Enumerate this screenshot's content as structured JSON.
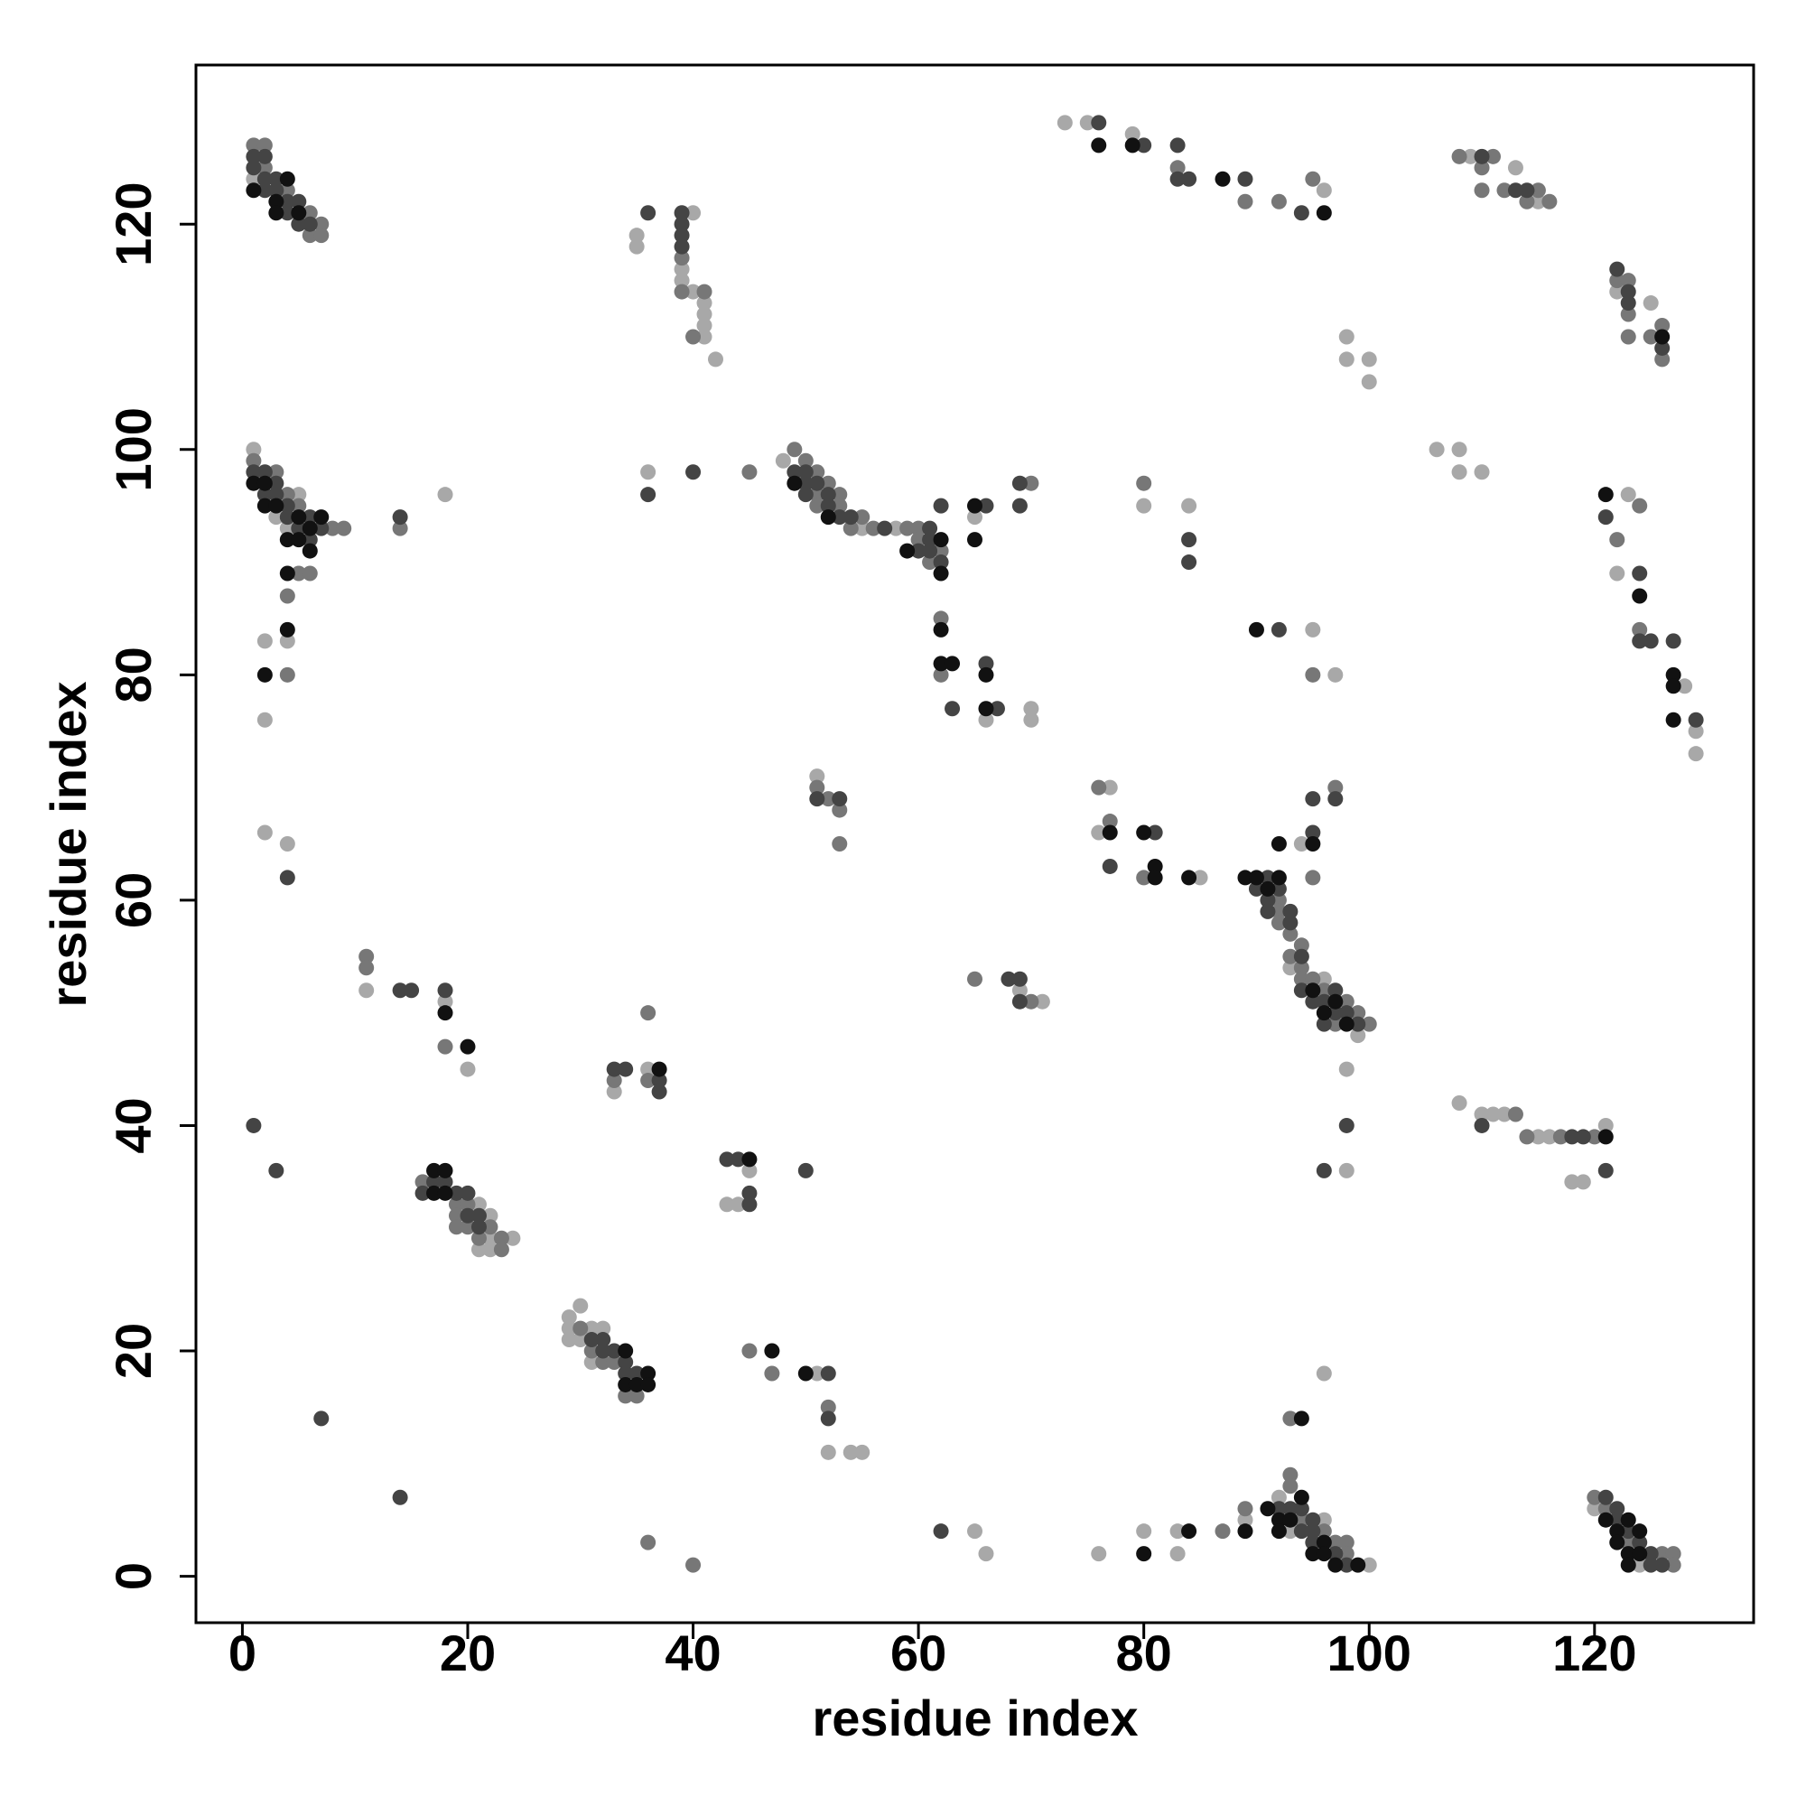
{
  "chart_data": {
    "type": "scatter",
    "xlabel": "residue index",
    "ylabel": "residue index",
    "xlim": [
      -4.12,
      134.12
    ],
    "ylim": [
      -4.12,
      134.12
    ],
    "xticks": [
      0,
      20,
      40,
      60,
      80,
      100,
      120
    ],
    "yticks": [
      0,
      20,
      40,
      60,
      80,
      100,
      120
    ],
    "series": [
      {
        "color": "#a8a8a8",
        "x": [
          1,
          1,
          5,
          3,
          4,
          4,
          2,
          2,
          2,
          4,
          18,
          11,
          18,
          20,
          21,
          22,
          22,
          24,
          21,
          22,
          29,
          30,
          29,
          31,
          32,
          29,
          30,
          31,
          33,
          36,
          45,
          43,
          44,
          51,
          52,
          54,
          55,
          65,
          66,
          76,
          80,
          83,
          83,
          89,
          92,
          96,
          93,
          100,
          96,
          120,
          124,
          108,
          110,
          111,
          112,
          115,
          116,
          121,
          118,
          119,
          98,
          98,
          93,
          96,
          99,
          94,
          77,
          76,
          85,
          48,
          55,
          58,
          65,
          66,
          70,
          70,
          36,
          69,
          71,
          51,
          35,
          35,
          40,
          39,
          39,
          40,
          41,
          41,
          41,
          41,
          42,
          73,
          75,
          79,
          96,
          109,
          115,
          113,
          122,
          125,
          123,
          122,
          128,
          129,
          129,
          106,
          108,
          108,
          110,
          98,
          98,
          100,
          100,
          80,
          84,
          95,
          97
        ],
        "y": [
          124,
          100,
          96,
          94,
          93,
          83,
          83,
          76,
          66,
          65,
          96,
          52,
          51,
          45,
          33,
          32,
          30,
          30,
          29,
          29,
          23,
          24,
          22,
          22,
          22,
          21,
          21,
          19,
          43,
          45,
          36,
          33,
          33,
          18,
          11,
          11,
          11,
          4,
          2,
          2,
          4,
          4,
          2,
          5,
          7,
          5,
          4,
          1,
          18,
          6,
          1,
          42,
          41,
          41,
          41,
          39,
          39,
          40,
          35,
          35,
          36,
          45,
          54,
          53,
          48,
          65,
          70,
          66,
          62,
          99,
          93,
          93,
          94,
          76,
          77,
          76,
          98,
          52,
          51,
          71,
          119,
          118,
          121,
          116,
          115,
          114,
          113,
          112,
          111,
          110,
          108,
          129,
          129,
          128,
          123,
          126,
          122,
          125,
          114,
          113,
          96,
          89,
          79,
          75,
          73,
          100,
          100,
          98,
          98,
          110,
          108,
          108,
          106,
          95,
          95,
          84,
          80
        ]
      },
      {
        "color": "#777777",
        "x": [
          1,
          2,
          2,
          4,
          6,
          7,
          6,
          7,
          1,
          3,
          4,
          5,
          8,
          9,
          5,
          6,
          4,
          4,
          14,
          11,
          11,
          18,
          16,
          19,
          20,
          19,
          19,
          20,
          22,
          21,
          23,
          23,
          30,
          31,
          32,
          33,
          34,
          35,
          33,
          36,
          36,
          45,
          47,
          52,
          36,
          40,
          87,
          89,
          93,
          93,
          94,
          96,
          97,
          98,
          98,
          120,
          121,
          123,
          126,
          127,
          127,
          113,
          114,
          117,
          120,
          92,
          92,
          92,
          93,
          94,
          93,
          94,
          94,
          95,
          96,
          98,
          99,
          97,
          100,
          95,
          97,
          76,
          77,
          80,
          49,
          50,
          51,
          52,
          51,
          53,
          51,
          53,
          55,
          54,
          56,
          59,
          60,
          60,
          62,
          61,
          62,
          62,
          70,
          45,
          65,
          70,
          51,
          52,
          53,
          53,
          39,
          39,
          41,
          40,
          83,
          89,
          92,
          95,
          108,
          111,
          110,
          110,
          112,
          115,
          114,
          116,
          122,
          123,
          123,
          123,
          125,
          126,
          126,
          124,
          122,
          124,
          80,
          95,
          93
        ],
        "y": [
          127,
          127,
          125,
          123,
          121,
          120,
          119,
          119,
          99,
          98,
          96,
          95,
          93,
          93,
          89,
          89,
          87,
          80,
          93,
          55,
          54,
          47,
          35,
          33,
          33,
          32,
          31,
          31,
          31,
          30,
          30,
          29,
          22,
          20,
          19,
          19,
          16,
          16,
          44,
          44,
          50,
          20,
          18,
          15,
          3,
          1,
          4,
          6,
          9,
          8,
          5,
          4,
          3,
          3,
          2,
          7,
          6,
          3,
          2,
          2,
          1,
          41,
          39,
          39,
          39,
          60,
          59,
          58,
          57,
          56,
          55,
          54,
          53,
          53,
          52,
          51,
          50,
          49,
          49,
          62,
          70,
          70,
          67,
          62,
          100,
          99,
          98,
          97,
          96,
          96,
          95,
          95,
          94,
          93,
          93,
          93,
          93,
          92,
          91,
          90,
          85,
          80,
          97,
          98,
          53,
          51,
          70,
          69,
          68,
          65,
          117,
          114,
          114,
          110,
          125,
          122,
          122,
          124,
          126,
          126,
          125,
          123,
          123,
          123,
          122,
          122,
          115,
          115,
          112,
          110,
          110,
          111,
          108,
          95,
          92,
          84,
          97,
          80,
          14
        ]
      },
      {
        "color": "#444444",
        "x": [
          1,
          2,
          1,
          2,
          3,
          2,
          3,
          4,
          5,
          4,
          5,
          6,
          1,
          2,
          3,
          2,
          3,
          4,
          4,
          6,
          5,
          7,
          6,
          4,
          14,
          1,
          3,
          7,
          14,
          14,
          15,
          18,
          17,
          18,
          16,
          19,
          20,
          20,
          21,
          21,
          31,
          32,
          32,
          33,
          34,
          34,
          35,
          33,
          34,
          37,
          37,
          43,
          44,
          45,
          45,
          50,
          52,
          52,
          62,
          92,
          93,
          94,
          95,
          94,
          95,
          95,
          97,
          98,
          121,
          122,
          122,
          123,
          124,
          125,
          125,
          126,
          110,
          118,
          119,
          121,
          96,
          98,
          91,
          90,
          92,
          91,
          91,
          93,
          93,
          94,
          94,
          97,
          95,
          96,
          97,
          98,
          96,
          99,
          95,
          95,
          97,
          77,
          81,
          49,
          50,
          50,
          51,
          50,
          52,
          52,
          53,
          54,
          57,
          61,
          60,
          61,
          61,
          62,
          62,
          63,
          66,
          66,
          67,
          69,
          69,
          36,
          40,
          68,
          69,
          69,
          51,
          53,
          36,
          39,
          39,
          39,
          39,
          76,
          80,
          83,
          83,
          84,
          89,
          94,
          110,
          113,
          114,
          122,
          123,
          123,
          126,
          121,
          124,
          124,
          125,
          127,
          129,
          84,
          84,
          92
        ],
        "y": [
          126,
          126,
          125,
          124,
          124,
          123,
          123,
          122,
          122,
          121,
          120,
          120,
          98,
          98,
          97,
          96,
          96,
          95,
          94,
          94,
          93,
          93,
          92,
          62,
          94,
          40,
          36,
          14,
          7,
          52,
          52,
          52,
          35,
          35,
          34,
          34,
          34,
          32,
          32,
          31,
          21,
          21,
          20,
          20,
          19,
          18,
          18,
          45,
          45,
          44,
          43,
          37,
          37,
          34,
          33,
          36,
          18,
          14,
          4,
          6,
          6,
          6,
          5,
          4,
          4,
          3,
          2,
          1,
          7,
          6,
          5,
          4,
          3,
          2,
          1,
          1,
          40,
          39,
          39,
          36,
          36,
          40,
          62,
          61,
          61,
          60,
          59,
          59,
          58,
          55,
          52,
          52,
          51,
          51,
          50,
          50,
          49,
          49,
          66,
          69,
          69,
          63,
          66,
          98,
          98,
          97,
          97,
          96,
          96,
          95,
          94,
          94,
          93,
          93,
          91,
          91,
          92,
          90,
          95,
          77,
          95,
          81,
          77,
          97,
          95,
          96,
          98,
          53,
          53,
          51,
          69,
          69,
          121,
          121,
          120,
          119,
          118,
          129,
          127,
          127,
          124,
          124,
          124,
          121,
          126,
          123,
          123,
          116,
          114,
          113,
          109,
          94,
          89,
          83,
          83,
          83,
          76,
          92,
          90,
          84
        ]
      },
      {
        "color": "#111111",
        "x": [
          4,
          1,
          3,
          3,
          5,
          1,
          2,
          2,
          3,
          5,
          7,
          6,
          4,
          5,
          6,
          4,
          4,
          2,
          18,
          20,
          17,
          18,
          17,
          18,
          34,
          36,
          34,
          35,
          36,
          37,
          45,
          47,
          50,
          80,
          84,
          89,
          94,
          91,
          92,
          93,
          92,
          96,
          95,
          96,
          97,
          99,
          94,
          121,
          123,
          122,
          124,
          122,
          123,
          124,
          123,
          121,
          89,
          90,
          92,
          91,
          95,
          97,
          96,
          98,
          92,
          95,
          77,
          80,
          81,
          81,
          84,
          49,
          52,
          59,
          62,
          62,
          62,
          62,
          63,
          65,
          65,
          66,
          66,
          76,
          79,
          87,
          96,
          126,
          121,
          124,
          127,
          127,
          127,
          90
        ],
        "y": [
          124,
          123,
          122,
          121,
          121,
          97,
          97,
          95,
          95,
          94,
          94,
          93,
          92,
          92,
          91,
          89,
          84,
          80,
          50,
          47,
          36,
          36,
          34,
          34,
          20,
          18,
          17,
          17,
          17,
          45,
          37,
          20,
          18,
          2,
          4,
          4,
          7,
          6,
          5,
          5,
          4,
          3,
          2,
          2,
          1,
          1,
          14,
          5,
          5,
          4,
          4,
          3,
          2,
          2,
          1,
          39,
          62,
          62,
          62,
          61,
          52,
          51,
          50,
          49,
          65,
          65,
          66,
          66,
          63,
          62,
          62,
          97,
          94,
          91,
          92,
          89,
          84,
          81,
          81,
          95,
          92,
          80,
          77,
          127,
          127,
          124,
          121,
          110,
          96,
          87,
          80,
          79,
          76,
          84
        ]
      }
    ]
  }
}
